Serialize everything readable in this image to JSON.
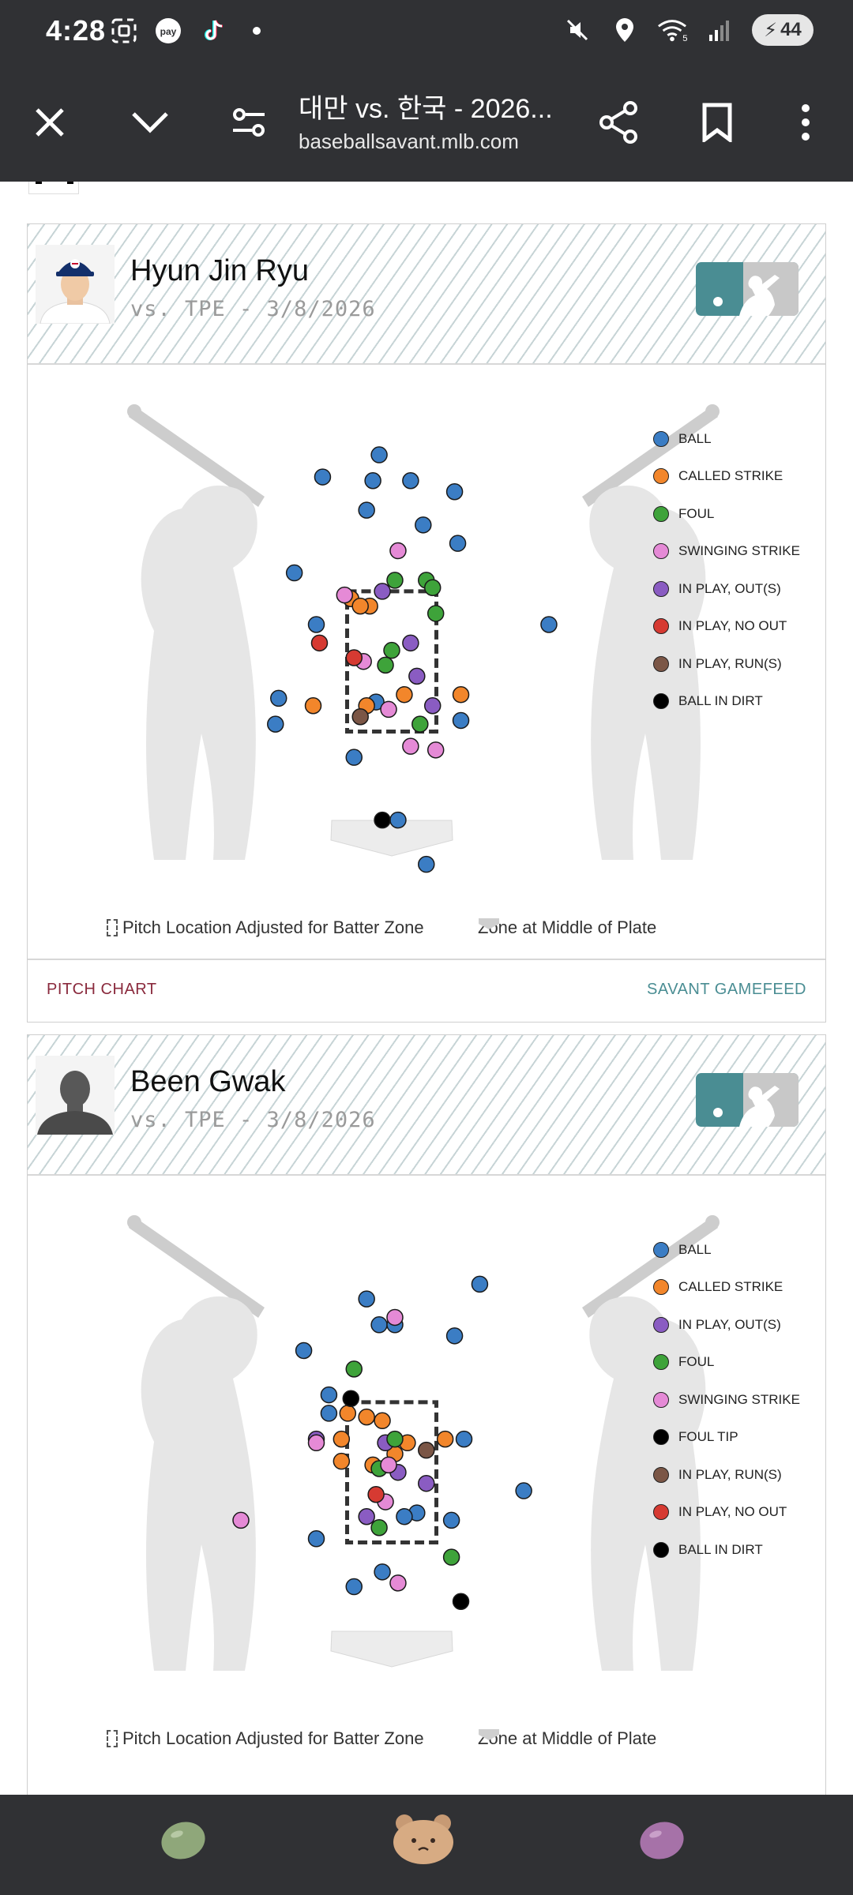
{
  "status_bar": {
    "time": "4:28",
    "battery": "44",
    "wifi_label": "5"
  },
  "app_bar": {
    "title": "대만 vs. 한국 - 2026...",
    "url": "baseballsavant.mlb.com"
  },
  "colors": {
    "ball": "#3b7dc4",
    "called_strike": "#f2862b",
    "foul": "#3ea33a",
    "swinging_strike": "#e58ad6",
    "in_play_outs": "#8a5cc2",
    "in_play_no_out": "#d63a32",
    "in_play_runs": "#7b5646",
    "ball_in_dirt": "#000000",
    "foul_tip": "#000000"
  },
  "cards": [
    {
      "player_name": "Hyun Jin Ryu",
      "subtitle": "vs. TPE - 3/8/2026",
      "legend": [
        {
          "label": "BALL",
          "key": "ball"
        },
        {
          "label": "CALLED STRIKE",
          "key": "called_strike"
        },
        {
          "label": "FOUL",
          "key": "foul"
        },
        {
          "label": "SWINGING STRIKE",
          "key": "swinging_strike"
        },
        {
          "label": "IN PLAY, OUT(S)",
          "key": "in_play_outs"
        },
        {
          "label": "IN PLAY, NO OUT",
          "key": "in_play_no_out"
        },
        {
          "label": "IN PLAY, RUN(S)",
          "key": "in_play_runs"
        },
        {
          "label": "BALL IN DIRT",
          "key": "ball_in_dirt"
        }
      ],
      "footnote_left": "Pitch Location Adjusted for Batter Zone",
      "footnote_right": "Zone at Middle of Plate",
      "link_left": "PITCH CHART",
      "link_right": "SAVANT GAMEFEED"
    },
    {
      "player_name": "Been Gwak",
      "subtitle": "vs. TPE - 3/8/2026",
      "legend": [
        {
          "label": "BALL",
          "key": "ball"
        },
        {
          "label": "CALLED STRIKE",
          "key": "called_strike"
        },
        {
          "label": "IN PLAY, OUT(S)",
          "key": "in_play_outs"
        },
        {
          "label": "FOUL",
          "key": "foul"
        },
        {
          "label": "SWINGING STRIKE",
          "key": "swinging_strike"
        },
        {
          "label": "FOUL TIP",
          "key": "foul_tip"
        },
        {
          "label": "IN PLAY, RUN(S)",
          "key": "in_play_runs"
        },
        {
          "label": "IN PLAY, NO OUT",
          "key": "in_play_no_out"
        },
        {
          "label": "BALL IN DIRT",
          "key": "ball_in_dirt"
        }
      ],
      "footnote_left": "Pitch Location Adjusted for Batter Zone",
      "footnote_right": "Zone at Middle of Plate"
    }
  ],
  "chart_data": [
    {
      "type": "scatter",
      "xlim": [
        -2.4,
        2.4
      ],
      "ylim": [
        -0.3,
        5.8
      ],
      "strike_zone": {
        "x": [
          -0.71,
          0.71
        ],
        "y": [
          1.6,
          3.5
        ]
      },
      "series": [
        {
          "name": "BALL",
          "key": "ball",
          "points": [
            [
              -0.2,
              5.35
            ],
            [
              -1.1,
              5.05
            ],
            [
              -0.3,
              5.0
            ],
            [
              0.3,
              5.0
            ],
            [
              1.0,
              4.85
            ],
            [
              -0.4,
              4.6
            ],
            [
              0.5,
              4.4
            ],
            [
              1.05,
              4.15
            ],
            [
              -1.55,
              3.75
            ],
            [
              -1.2,
              3.05
            ],
            [
              2.5,
              3.05
            ],
            [
              -1.8,
              2.05
            ],
            [
              -1.85,
              1.7
            ],
            [
              -0.25,
              2.0
            ],
            [
              1.1,
              1.75
            ],
            [
              -0.6,
              1.25
            ],
            [
              0.1,
              0.4
            ],
            [
              0.55,
              -0.2
            ]
          ]
        },
        {
          "name": "CALLED STRIKE",
          "key": "called_strike",
          "points": [
            [
              -0.65,
              3.4
            ],
            [
              -0.35,
              3.3
            ],
            [
              -0.5,
              3.3
            ],
            [
              -1.25,
              1.95
            ],
            [
              0.2,
              2.1
            ],
            [
              1.1,
              2.1
            ],
            [
              -0.4,
              1.95
            ]
          ]
        },
        {
          "name": "FOUL",
          "key": "foul",
          "points": [
            [
              0.05,
              3.65
            ],
            [
              0.55,
              3.65
            ],
            [
              0.65,
              3.55
            ],
            [
              0.7,
              3.2
            ],
            [
              0.0,
              2.7
            ],
            [
              -0.1,
              2.5
            ],
            [
              0.45,
              1.7
            ]
          ]
        },
        {
          "name": "SWINGING STRIKE",
          "key": "swinging_strike",
          "points": [
            [
              0.1,
              4.05
            ],
            [
              -0.75,
              3.45
            ],
            [
              -0.45,
              2.55
            ],
            [
              -0.05,
              1.9
            ],
            [
              0.3,
              1.4
            ],
            [
              0.7,
              1.35
            ]
          ]
        },
        {
          "name": "IN PLAY, OUT(S)",
          "key": "in_play_outs",
          "points": [
            [
              -0.15,
              3.5
            ],
            [
              0.3,
              2.8
            ],
            [
              0.4,
              2.35
            ],
            [
              0.65,
              1.95
            ]
          ]
        },
        {
          "name": "IN PLAY, NO OUT",
          "key": "in_play_no_out",
          "points": [
            [
              -1.15,
              2.8
            ],
            [
              -0.6,
              2.6
            ]
          ]
        },
        {
          "name": "IN PLAY, RUN(S)",
          "key": "in_play_runs",
          "points": [
            [
              -0.5,
              1.8
            ]
          ]
        },
        {
          "name": "BALL IN DIRT",
          "key": "ball_in_dirt",
          "points": [
            [
              -0.15,
              0.4
            ]
          ]
        }
      ]
    },
    {
      "type": "scatter",
      "xlim": [
        -2.4,
        2.4
      ],
      "ylim": [
        -0.3,
        5.8
      ],
      "strike_zone": {
        "x": [
          -0.71,
          0.71
        ],
        "y": [
          1.6,
          3.5
        ]
      },
      "series": [
        {
          "name": "BALL",
          "key": "ball",
          "points": [
            [
              1.4,
              5.1
            ],
            [
              -0.4,
              4.9
            ],
            [
              -0.2,
              4.55
            ],
            [
              0.05,
              4.55
            ],
            [
              1.0,
              4.4
            ],
            [
              -1.4,
              4.2
            ],
            [
              -1.0,
              3.6
            ],
            [
              -1.0,
              3.35
            ],
            [
              1.15,
              3.0
            ],
            [
              2.1,
              2.3
            ],
            [
              -1.2,
              1.65
            ],
            [
              0.4,
              2.0
            ],
            [
              0.2,
              1.95
            ],
            [
              0.95,
              1.9
            ],
            [
              -0.15,
              1.2
            ],
            [
              -0.6,
              1.0
            ]
          ]
        },
        {
          "name": "CALLED STRIKE",
          "key": "called_strike",
          "points": [
            [
              -0.7,
              3.35
            ],
            [
              -0.4,
              3.3
            ],
            [
              -0.8,
              3.0
            ],
            [
              -0.15,
              3.25
            ],
            [
              0.25,
              2.95
            ],
            [
              0.85,
              3.0
            ],
            [
              -0.8,
              2.7
            ],
            [
              -0.3,
              2.65
            ],
            [
              0.05,
              2.8
            ]
          ]
        },
        {
          "name": "IN PLAY, OUT(S)",
          "key": "in_play_outs",
          "points": [
            [
              -1.2,
              3.0
            ],
            [
              -0.1,
              2.95
            ],
            [
              0.1,
              2.55
            ],
            [
              0.55,
              2.4
            ],
            [
              -0.4,
              1.95
            ]
          ]
        },
        {
          "name": "FOUL",
          "key": "foul",
          "points": [
            [
              -0.6,
              3.95
            ],
            [
              0.05,
              3.0
            ],
            [
              -0.2,
              2.6
            ],
            [
              -0.2,
              1.8
            ],
            [
              0.95,
              1.4
            ]
          ]
        },
        {
          "name": "SWINGING STRIKE",
          "key": "swinging_strike",
          "points": [
            [
              0.05,
              4.65
            ],
            [
              -1.2,
              2.95
            ],
            [
              -0.05,
              2.65
            ],
            [
              -0.1,
              2.15
            ],
            [
              -2.4,
              1.9
            ],
            [
              0.1,
              1.05
            ]
          ]
        },
        {
          "name": "FOUL TIP",
          "key": "foul_tip",
          "points": [
            [
              -0.65,
              3.55
            ]
          ]
        },
        {
          "name": "IN PLAY, RUN(S)",
          "key": "in_play_runs",
          "points": [
            [
              0.55,
              2.85
            ]
          ]
        },
        {
          "name": "IN PLAY, NO OUT",
          "key": "in_play_no_out",
          "points": [
            [
              -0.25,
              2.25
            ]
          ]
        },
        {
          "name": "BALL IN DIRT",
          "key": "ball_in_dirt",
          "points": [
            [
              1.1,
              0.8
            ]
          ]
        }
      ]
    }
  ],
  "bottom_nav": {
    "items": [
      "green-bean-icon",
      "bear-icon",
      "purple-bean-icon"
    ]
  }
}
